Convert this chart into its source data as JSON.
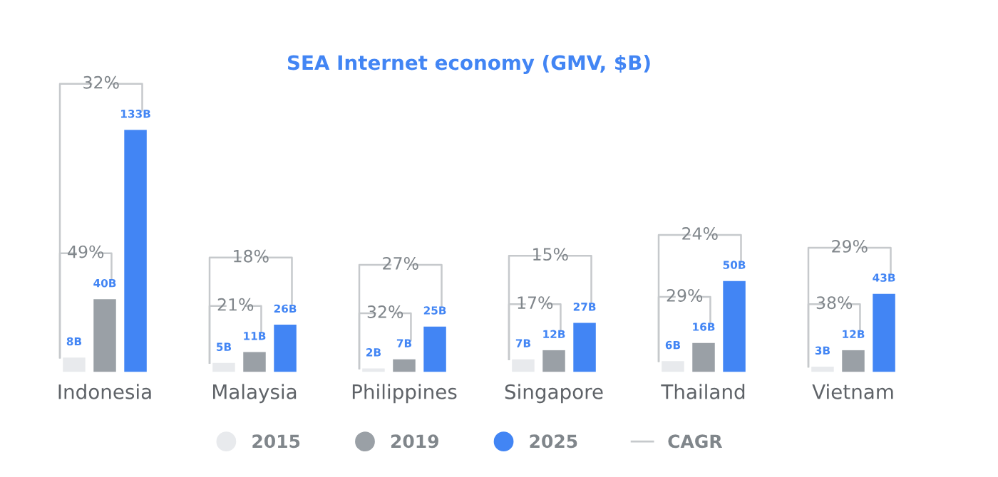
{
  "chart_data": {
    "type": "bar",
    "title": "SEA Internet economy (GMV, $B)",
    "categories": [
      "Indonesia",
      "Malaysia",
      "Philippines",
      "Singapore",
      "Thailand",
      "Vietnam"
    ],
    "series": [
      {
        "name": "2015",
        "color": "#e8eaed",
        "values": [
          8,
          5,
          2,
          7,
          6,
          3
        ],
        "value_labels": [
          "8B",
          "5B",
          "2B",
          "7B",
          "6B",
          "3B"
        ]
      },
      {
        "name": "2019",
        "color": "#9aa0a6",
        "values": [
          40,
          11,
          7,
          12,
          16,
          12
        ],
        "value_labels": [
          "40B",
          "11B",
          "7B",
          "12B",
          "16B",
          "12B"
        ]
      },
      {
        "name": "2025",
        "color": "#4285f4",
        "values": [
          133,
          26,
          25,
          27,
          50,
          43
        ],
        "value_labels": [
          "133B",
          "26B",
          "25B",
          "27B",
          "50B",
          "43B"
        ]
      }
    ],
    "legend": "bottom",
    "marker": "circle",
    "annotations": [
      "32%",
      "49%",
      "18%",
      "21%",
      "27%",
      "32%",
      "15%",
      "17%",
      "24%",
      "29%",
      "29%",
      "38%",
      "CAGR"
    ]
  }
}
